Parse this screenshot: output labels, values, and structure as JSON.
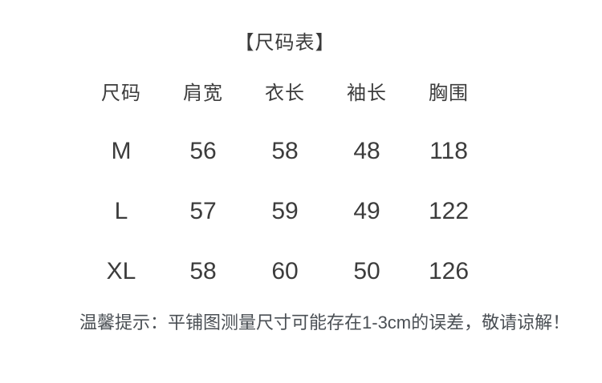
{
  "colors": {
    "background": "#ffffff",
    "table_text": "#3c3c3c",
    "note_text": "#4a4f54"
  },
  "chart_data": {
    "type": "table",
    "title": "【尺码表】",
    "columns": [
      "尺码",
      "肩宽",
      "衣长",
      "袖长",
      "胸围"
    ],
    "rows": [
      [
        "M",
        "56",
        "58",
        "48",
        "118"
      ],
      [
        "L",
        "57",
        "59",
        "49",
        "122"
      ],
      [
        "XL",
        "58",
        "60",
        "50",
        "126"
      ]
    ],
    "note": "温馨提示：平铺图测量尺寸可能存在1-3cm的误差，敬请谅解！"
  }
}
